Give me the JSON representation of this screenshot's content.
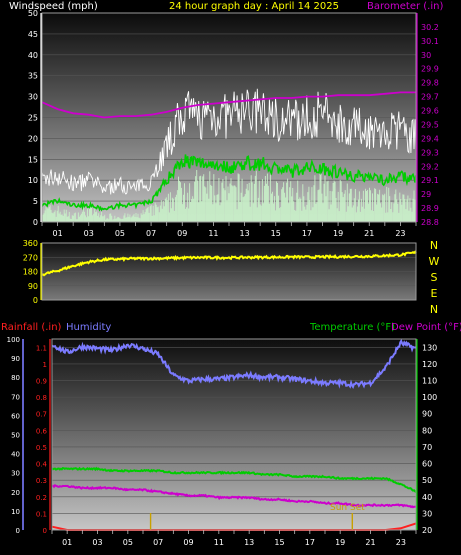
{
  "header": {
    "left_label": "Windspeed (mph)",
    "title": "24 hour graph day : April 14 2025",
    "right_label": "Barometer (.in)"
  },
  "colors": {
    "wind_peak": "#ffffff",
    "wind_avg": "#00cc00",
    "wind_base": "#c8f0c8",
    "barometer": "#cc00cc",
    "direction": "#ffff00",
    "humidity": "#7b7bff",
    "temperature": "#00cc00",
    "dewpoint": "#cc00cc",
    "rainfall": "#ff2020",
    "sunset": "#c8a000"
  },
  "x_ticks": [
    "01",
    "03",
    "05",
    "07",
    "09",
    "11",
    "13",
    "15",
    "17",
    "19",
    "21",
    "23"
  ],
  "chart_data": [
    {
      "type": "line",
      "title": "24 hour graph day : April 14 2025",
      "ylabel": "Windspeed (mph)",
      "y2label": "Barometer (.in)",
      "ylim": [
        0,
        50
      ],
      "y2lim": [
        28.8,
        30.3
      ],
      "yticks": [
        0,
        5,
        10,
        15,
        20,
        25,
        30,
        35,
        40,
        45,
        50
      ],
      "y2ticks": [
        "28.8",
        "28.9",
        "29",
        "29.1",
        "29.2",
        "29.3",
        "29.4",
        "29.5",
        "29.6",
        "29.7",
        "29.8",
        "29.9",
        "30",
        "30.1",
        "30.2"
      ],
      "x": [
        0,
        1,
        2,
        3,
        4,
        5,
        6,
        7,
        8,
        9,
        10,
        11,
        12,
        13,
        14,
        15,
        16,
        17,
        18,
        19,
        20,
        21,
        22,
        23,
        24
      ],
      "series": [
        {
          "role": "wind_peak",
          "values": [
            10,
            11,
            9,
            10,
            8,
            9,
            8,
            10,
            18,
            26,
            25,
            26,
            25,
            27,
            26,
            25,
            24,
            25,
            26,
            24,
            23,
            22,
            21,
            22,
            20
          ]
        },
        {
          "role": "wind_avg",
          "values": [
            4,
            5,
            4,
            4,
            3,
            4,
            4,
            5,
            10,
            15,
            14,
            14,
            13,
            14,
            14,
            13,
            12,
            13,
            13,
            12,
            11,
            11,
            10,
            11,
            10
          ]
        },
        {
          "role": "wind_base",
          "values": [
            2,
            2,
            1,
            2,
            1,
            1,
            1,
            2,
            3,
            6,
            6,
            6,
            5,
            6,
            6,
            5,
            5,
            5,
            6,
            5,
            4,
            4,
            4,
            4,
            4
          ]
        },
        {
          "role": "barometer",
          "values": [
            29.66,
            29.61,
            29.58,
            29.57,
            29.55,
            29.56,
            29.56,
            29.57,
            29.59,
            29.62,
            29.64,
            29.65,
            29.66,
            29.67,
            29.68,
            29.69,
            29.69,
            29.7,
            29.7,
            29.71,
            29.71,
            29.71,
            29.72,
            29.73,
            29.73
          ]
        }
      ]
    },
    {
      "type": "line",
      "ylim": [
        0,
        360
      ],
      "yticks": [
        0,
        90,
        180,
        270,
        360
      ],
      "dir_labels": [
        "N",
        "W",
        "S",
        "E",
        "N"
      ],
      "x": [
        0,
        1,
        2,
        3,
        4,
        5,
        6,
        7,
        8,
        9,
        10,
        11,
        12,
        13,
        14,
        15,
        16,
        17,
        18,
        19,
        20,
        21,
        22,
        23,
        24
      ],
      "series": [
        {
          "role": "direction",
          "values": [
            160,
            185,
            215,
            240,
            255,
            258,
            262,
            262,
            264,
            266,
            268,
            268,
            267,
            269,
            270,
            270,
            272,
            271,
            272,
            273,
            275,
            276,
            280,
            285,
            300
          ]
        }
      ]
    },
    {
      "type": "line",
      "legend": {
        "rainfall": "Rainfall (.in)",
        "humidity": "Humidity",
        "temperature": "Temperature (°F)",
        "dewpoint": "Dew Point (°F)"
      },
      "annotation": "Sun Set",
      "humidity_ticks": [
        0,
        10,
        20,
        30,
        40,
        50,
        60,
        70,
        80,
        90,
        100
      ],
      "rain_ticks": [
        "0",
        "0.1",
        "0.2",
        "0.3",
        "0.4",
        "0.5",
        "0.6",
        "0.7",
        "0.8",
        "0.9",
        "1",
        "1.1"
      ],
      "temp_ticks": [
        20,
        30,
        40,
        50,
        60,
        70,
        80,
        90,
        100,
        110,
        120,
        130
      ],
      "rain_lim": [
        0,
        1.15
      ],
      "temp_lim": [
        20,
        135
      ],
      "x": [
        0,
        1,
        2,
        3,
        4,
        5,
        6,
        7,
        8,
        9,
        10,
        11,
        12,
        13,
        14,
        15,
        16,
        17,
        18,
        19,
        20,
        21,
        22,
        23,
        24
      ],
      "series": [
        {
          "role": "humidity",
          "values": [
            0.97,
            0.93,
            0.96,
            0.95,
            0.94,
            0.97,
            0.95,
            0.92,
            0.81,
            0.78,
            0.79,
            0.79,
            0.8,
            0.81,
            0.8,
            0.8,
            0.79,
            0.78,
            0.77,
            0.77,
            0.76,
            0.77,
            0.85,
            0.98,
            0.95
          ]
        },
        {
          "role": "temperature",
          "values": [
            0.32,
            0.32,
            0.32,
            0.32,
            0.31,
            0.31,
            0.31,
            0.31,
            0.3,
            0.3,
            0.3,
            0.3,
            0.3,
            0.3,
            0.29,
            0.29,
            0.28,
            0.28,
            0.28,
            0.27,
            0.27,
            0.27,
            0.27,
            0.24,
            0.2
          ]
        },
        {
          "role": "dewpoint",
          "values": [
            0.23,
            0.23,
            0.22,
            0.22,
            0.22,
            0.21,
            0.21,
            0.2,
            0.19,
            0.18,
            0.18,
            0.17,
            0.17,
            0.17,
            0.16,
            0.16,
            0.15,
            0.15,
            0.14,
            0.14,
            0.13,
            0.13,
            0.13,
            0.13,
            0.12
          ]
        },
        {
          "role": "rainfall",
          "values": [
            0.02,
            0,
            0,
            0,
            0,
            0,
            0,
            0,
            0,
            0,
            0,
            0,
            0,
            0,
            0,
            0,
            0,
            0,
            0,
            0,
            0,
            0,
            0,
            0.01,
            0.04
          ]
        }
      ],
      "markers": [
        {
          "role": "sun_event",
          "x": 6.5
        },
        {
          "role": "sunset",
          "x": 19.8
        }
      ]
    }
  ]
}
